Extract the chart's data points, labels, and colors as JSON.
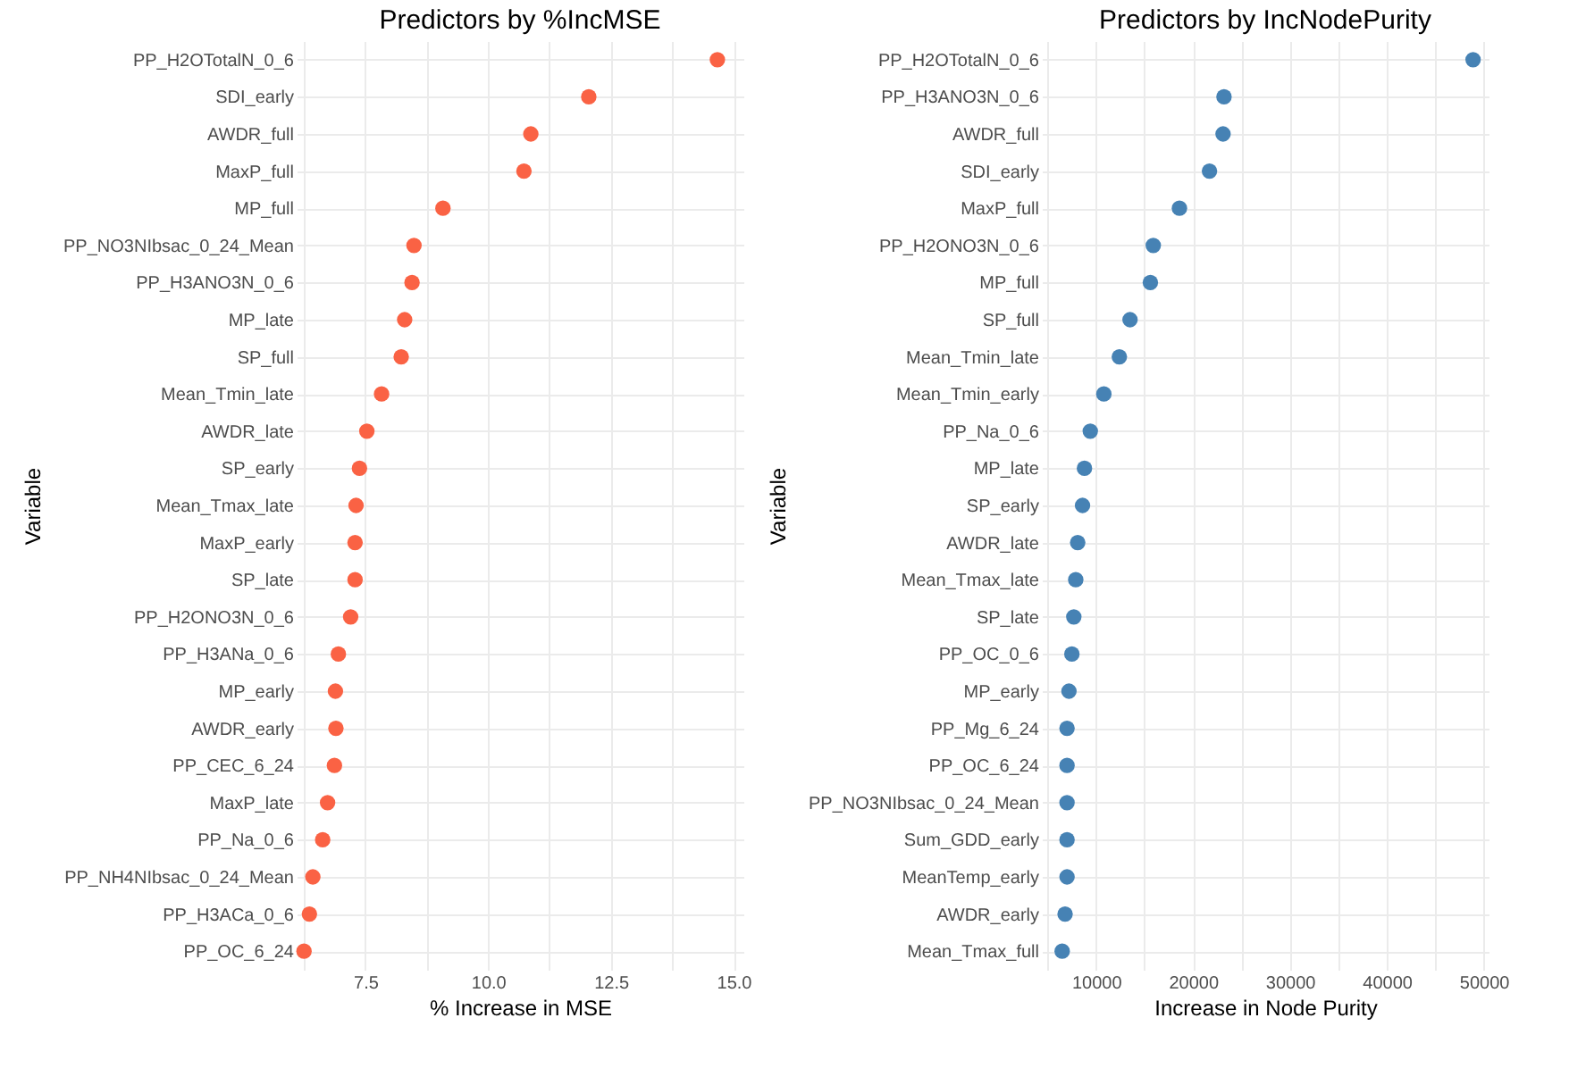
{
  "chart_data": [
    {
      "type": "scatter",
      "title": "Predictors by %IncMSE",
      "xlabel": "% Increase in MSE",
      "ylabel": "Variable",
      "orientation": "horizontal",
      "marker": "circle",
      "grid": true,
      "categories": [
        "PP_H2OTotalN_0_6",
        "SDI_early",
        "AWDR_full",
        "MaxP_full",
        "MP_full",
        "PP_NO3NIbsac_0_24_Mean",
        "PP_H3ANO3N_0_6",
        "MP_late",
        "SP_full",
        "Mean_Tmin_late",
        "AWDR_late",
        "SP_early",
        "Mean_Tmax_late",
        "MaxP_early",
        "SP_late",
        "PP_H2ONO3N_0_6",
        "PP_H3ANa_0_6",
        "MP_early",
        "AWDR_early",
        "PP_CEC_6_24",
        "MaxP_late",
        "PP_Na_0_6",
        "PP_NH4NIbsac_0_24_Mean",
        "PP_H3ACa_0_6",
        "PP_OC_6_24"
      ],
      "series": [
        {
          "color": "#fa6244",
          "values": [
            14.67,
            12.05,
            10.87,
            10.73,
            9.08,
            8.49,
            8.45,
            8.3,
            8.23,
            7.83,
            7.53,
            7.38,
            7.31,
            7.29,
            7.29,
            7.2,
            6.95,
            6.89,
            6.9,
            6.87,
            6.73,
            6.63,
            6.43,
            6.36,
            6.25
          ]
        }
      ],
      "xlim": [
        6.1,
        15.2
      ],
      "xticks": [
        {
          "value": 6.25,
          "label": null
        },
        "7.5",
        {
          "value": 8.75,
          "label": null
        },
        {
          "value": 10,
          "label": "10.0"
        },
        {
          "value": 11.25,
          "label": null
        },
        12.5,
        {
          "value": 13.75,
          "label": null
        },
        {
          "value": 15,
          "label": "15.0"
        }
      ]
    },
    {
      "type": "scatter",
      "title": "Predictors by IncNodePurity",
      "xlabel": "Increase in Node Purity",
      "ylabel": "Variable",
      "orientation": "horizontal",
      "marker": "circle",
      "grid": true,
      "categories": [
        "PP_H2OTotalN_0_6",
        "PP_H3ANO3N_0_6",
        "AWDR_full",
        "SDI_early",
        "MaxP_full",
        "PP_H2ONO3N_0_6",
        "MP_full",
        "SP_full",
        "Mean_Tmin_late",
        "Mean_Tmin_early",
        "PP_Na_0_6",
        "MP_late",
        "SP_early",
        "AWDR_late",
        "Mean_Tmax_late",
        "SP_late",
        "PP_OC_0_6",
        "MP_early",
        "PP_Mg_6_24",
        "PP_OC_6_24",
        "PP_NO3NIbsac_0_24_Mean",
        "Sum_GDD_early",
        "MeanTemp_early",
        "AWDR_early",
        "Mean_Tmax_full"
      ],
      "series": [
        {
          "color": "#4682b4",
          "values": [
            48900,
            23200,
            23100,
            21700,
            18600,
            15900,
            15600,
            13500,
            12400,
            10800,
            9400,
            8800,
            8600,
            8100,
            7900,
            7700,
            7500,
            7200,
            7000,
            7000,
            7000,
            7000,
            7000,
            6800,
            6500
          ]
        }
      ],
      "xlim": [
        4400,
        50500
      ],
      "xticks": [
        {
          "value": 5000,
          "label": null
        },
        10000,
        {
          "value": 15000,
          "label": null
        },
        20000,
        {
          "value": 25000,
          "label": null
        },
        30000,
        {
          "value": 35000,
          "label": null
        },
        40000,
        {
          "value": 45000,
          "label": null
        },
        50000
      ]
    }
  ]
}
